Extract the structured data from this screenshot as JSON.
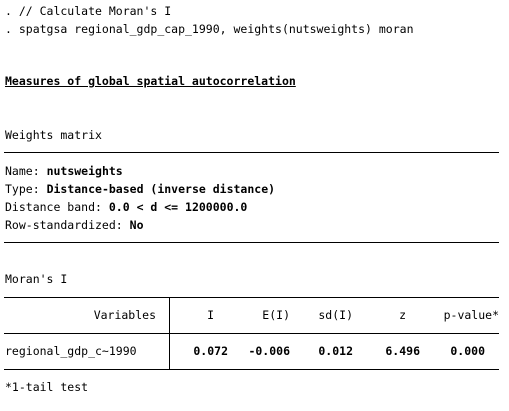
{
  "commands": {
    "comment": ". // Calculate Moran's I",
    "command": ". spatgsa regional_gdp_cap_1990, weights(nutsweights) moran"
  },
  "heading": "Measures of global spatial autocorrelation",
  "weights": {
    "title": "Weights matrix",
    "name_label": "Name:",
    "name_value": "nutsweights",
    "type_label": "Type:",
    "type_value": "Distance-based (inverse distance)",
    "band_label": "Distance band:",
    "band_value": "0.0 < d <= 1200000.0",
    "rowstd_label": "Row-standardized:",
    "rowstd_value": "No"
  },
  "moran": {
    "title": "Moran's I",
    "columns": [
      "Variables",
      "I",
      "E(I)",
      "sd(I)",
      "z",
      "p-value*"
    ],
    "rows": [
      {
        "variable": "regional_gdp_c~1990",
        "I": "0.072",
        "EI": "-0.006",
        "sdI": "0.012",
        "z": "6.496",
        "p": "0.000"
      }
    ],
    "footnote": "*1-tail test"
  }
}
